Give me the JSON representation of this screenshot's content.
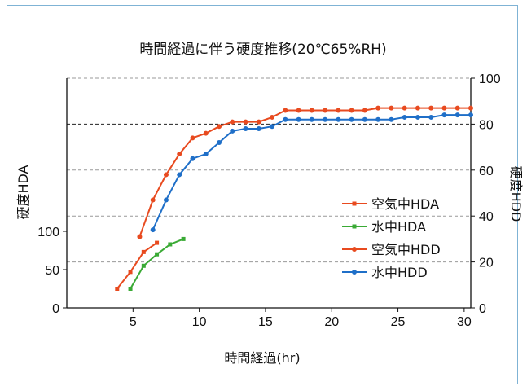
{
  "chart_data": {
    "type": "line",
    "title": "時間経過に伴う硬度推移(20℃65%RH)",
    "xlabel": "時間経過(hr)",
    "ylabel_left": "硬度HDA",
    "ylabel_right": "硬度HDD",
    "xlim": [
      0,
      30.5
    ],
    "ylim_left": [
      0,
      300
    ],
    "ylim_right": [
      0,
      100
    ],
    "x_ticks": [
      5,
      10,
      15,
      20,
      25,
      30
    ],
    "y_left_ticks": [
      0,
      50,
      100
    ],
    "y_right_ticks": [
      0,
      20,
      40,
      60,
      80,
      100
    ],
    "grid": "horizontal-dashed",
    "legend_position": "right",
    "series": [
      {
        "name": "空気中HDA",
        "axis": "left",
        "color": "#e84a1f",
        "marker": "square",
        "x": [
          3.8,
          4.8,
          5.8,
          6.8
        ],
        "y": [
          25,
          47,
          73,
          85
        ]
      },
      {
        "name": "水中HDA",
        "axis": "left",
        "color": "#3aaa35",
        "marker": "square",
        "x": [
          4.8,
          5.8,
          6.8,
          7.8,
          8.8
        ],
        "y": [
          25,
          55,
          70,
          83,
          90
        ]
      },
      {
        "name": "空気中HDD",
        "axis": "right",
        "color": "#e84a1f",
        "marker": "circle",
        "x": [
          5.5,
          6.5,
          7.5,
          8.5,
          9.5,
          10.5,
          11.5,
          12.5,
          13.5,
          14.5,
          15.5,
          16.5,
          17.5,
          18.5,
          19.5,
          20.5,
          21.5,
          22.5,
          23.5,
          24.5,
          25.5,
          26.5,
          27.5,
          28.5,
          29.5,
          30.5
        ],
        "y": [
          31,
          47,
          58,
          67,
          74,
          76,
          79,
          81,
          81,
          81,
          83,
          86,
          86,
          86,
          86,
          86,
          86,
          86,
          87,
          87,
          87,
          87,
          87,
          87,
          87,
          87
        ]
      },
      {
        "name": "水中HDD",
        "axis": "right",
        "color": "#1f6fc8",
        "marker": "circle",
        "x": [
          6.5,
          7.5,
          8.5,
          9.5,
          10.5,
          11.5,
          12.5,
          13.5,
          14.5,
          15.5,
          16.5,
          17.5,
          18.5,
          19.5,
          20.5,
          21.5,
          22.5,
          23.5,
          24.5,
          25.5,
          26.5,
          27.5,
          28.5,
          29.5,
          30.5
        ],
        "y": [
          34,
          47,
          58,
          65,
          67,
          72,
          77,
          78,
          78,
          79,
          82,
          82,
          82,
          82,
          82,
          82,
          82,
          82,
          82,
          83,
          83,
          83,
          84,
          84,
          84
        ]
      }
    ]
  }
}
